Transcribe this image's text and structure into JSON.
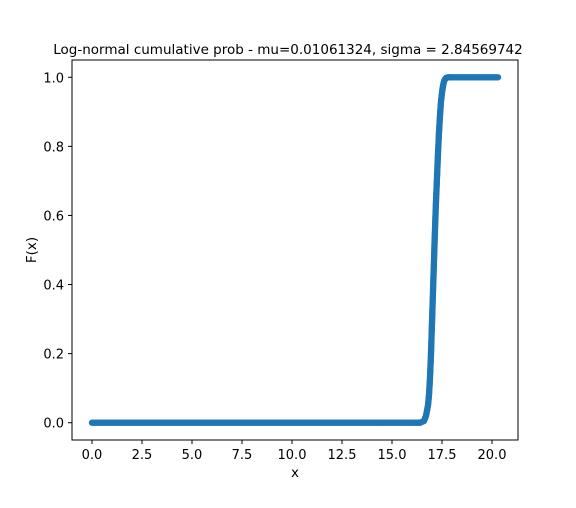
{
  "chart_data": {
    "type": "scatter",
    "title": "Log-normal cumulative prob - mu=0.01061324, sigma = 2.84569742",
    "xlabel": "x",
    "ylabel": "F(x)",
    "xlim": [
      -1.0,
      21.3
    ],
    "ylim": [
      -0.05,
      1.05
    ],
    "xticks": [
      0.0,
      2.5,
      5.0,
      7.5,
      10.0,
      12.5,
      15.0,
      17.5,
      20.0
    ],
    "xtick_labels": [
      "0.0",
      "2.5",
      "5.0",
      "7.5",
      "10.0",
      "12.5",
      "15.0",
      "17.5",
      "20.0"
    ],
    "yticks": [
      0.0,
      0.2,
      0.4,
      0.6,
      0.8,
      1.0
    ],
    "ytick_labels": [
      "0.0",
      "0.2",
      "0.4",
      "0.6",
      "0.8",
      "1.0"
    ],
    "grid": false,
    "marker_color": "#1f77b4",
    "series": [
      {
        "x": [
          0.0,
          1.0,
          2.0,
          3.0,
          4.0,
          5.0,
          6.0,
          7.0,
          8.0,
          9.0,
          10.0,
          11.0,
          12.0,
          13.0,
          14.0,
          15.0,
          15.5,
          16.0,
          16.4,
          16.6,
          16.7,
          16.8,
          16.85,
          16.9,
          16.95,
          17.0,
          17.05,
          17.1,
          17.15,
          17.2,
          17.25,
          17.3,
          17.35,
          17.4,
          17.45,
          17.5,
          17.55,
          17.6,
          17.65,
          17.7,
          17.8,
          17.9,
          18.0,
          18.5,
          19.0,
          19.5,
          20.0,
          20.3
        ],
        "y": [
          0.0,
          0.0,
          0.0,
          0.0,
          0.0,
          0.0,
          0.0,
          0.0,
          0.0,
          0.0,
          0.0,
          0.0,
          0.0,
          0.0,
          0.0,
          0.0,
          0.0,
          0.0,
          0.0,
          0.005,
          0.02,
          0.05,
          0.08,
          0.13,
          0.2,
          0.29,
          0.38,
          0.47,
          0.56,
          0.64,
          0.71,
          0.78,
          0.84,
          0.89,
          0.93,
          0.955,
          0.975,
          0.988,
          0.994,
          0.998,
          1.0,
          1.0,
          1.0,
          1.0,
          1.0,
          1.0,
          1.0,
          1.0
        ]
      }
    ]
  }
}
